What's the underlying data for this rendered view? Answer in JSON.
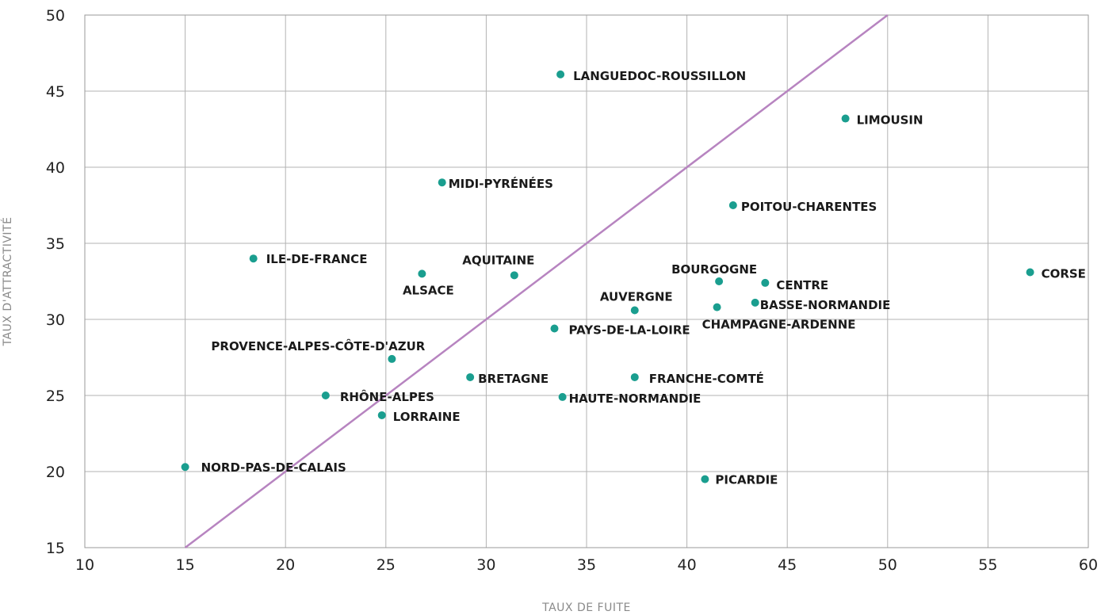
{
  "chart_data": {
    "type": "scatter",
    "xlabel": "TAUX DE FUITE",
    "ylabel": "TAUX D'ATTRACTIVITÉ",
    "xlim": [
      10,
      60
    ],
    "ylim": [
      15,
      50
    ],
    "xticks": [
      10,
      15,
      20,
      25,
      30,
      35,
      40,
      45,
      50,
      55,
      60
    ],
    "yticks": [
      15,
      20,
      25,
      30,
      35,
      40,
      45,
      50
    ],
    "grid": true,
    "point_color": "#1a9e8f",
    "line_color": "#b784c0",
    "reference_line": {
      "x": [
        15,
        50
      ],
      "y": [
        15,
        50
      ]
    },
    "points": [
      {
        "label": "LANGUEDOC-ROUSSILLON",
        "x": 33.7,
        "y": 46.1
      },
      {
        "label": "LIMOUSIN",
        "x": 47.9,
        "y": 43.2
      },
      {
        "label": "MIDI-PYRÉNÉES",
        "x": 27.8,
        "y": 39.0
      },
      {
        "label": "POITOU-CHARENTES",
        "x": 42.3,
        "y": 37.5
      },
      {
        "label": "ILE-DE-FRANCE",
        "x": 18.4,
        "y": 34.0
      },
      {
        "label": "ALSACE",
        "x": 26.8,
        "y": 33.0
      },
      {
        "label": "AQUITAINE",
        "x": 31.4,
        "y": 32.9
      },
      {
        "label": "CORSE",
        "x": 57.1,
        "y": 33.1
      },
      {
        "label": "BOURGOGNE",
        "x": 41.6,
        "y": 32.5
      },
      {
        "label": "CENTRE",
        "x": 43.9,
        "y": 32.4
      },
      {
        "label": "BASSE-NORMANDIE",
        "x": 43.4,
        "y": 31.1
      },
      {
        "label": "AUVERGNE",
        "x": 37.4,
        "y": 30.6
      },
      {
        "label": "CHAMPAGNE-ARDENNE",
        "x": 41.5,
        "y": 30.8
      },
      {
        "label": "PAYS-DE-LA-LOIRE",
        "x": 33.4,
        "y": 29.4
      },
      {
        "label": "PROVENCE-ALPES-CÔTE-D'AZUR",
        "x": 25.3,
        "y": 27.4
      },
      {
        "label": "BRETAGNE",
        "x": 29.2,
        "y": 26.2
      },
      {
        "label": "FRANCHE-COMTÉ",
        "x": 37.4,
        "y": 26.2
      },
      {
        "label": "RHÔNE-ALPES",
        "x": 22.0,
        "y": 25.0
      },
      {
        "label": "HAUTE-NORMANDIE",
        "x": 33.8,
        "y": 24.9
      },
      {
        "label": "LORRAINE",
        "x": 24.8,
        "y": 23.7
      },
      {
        "label": "NORD-PAS-DE-CALAIS",
        "x": 15.0,
        "y": 20.3
      },
      {
        "label": "PICARDIE",
        "x": 40.9,
        "y": 19.5
      }
    ]
  }
}
